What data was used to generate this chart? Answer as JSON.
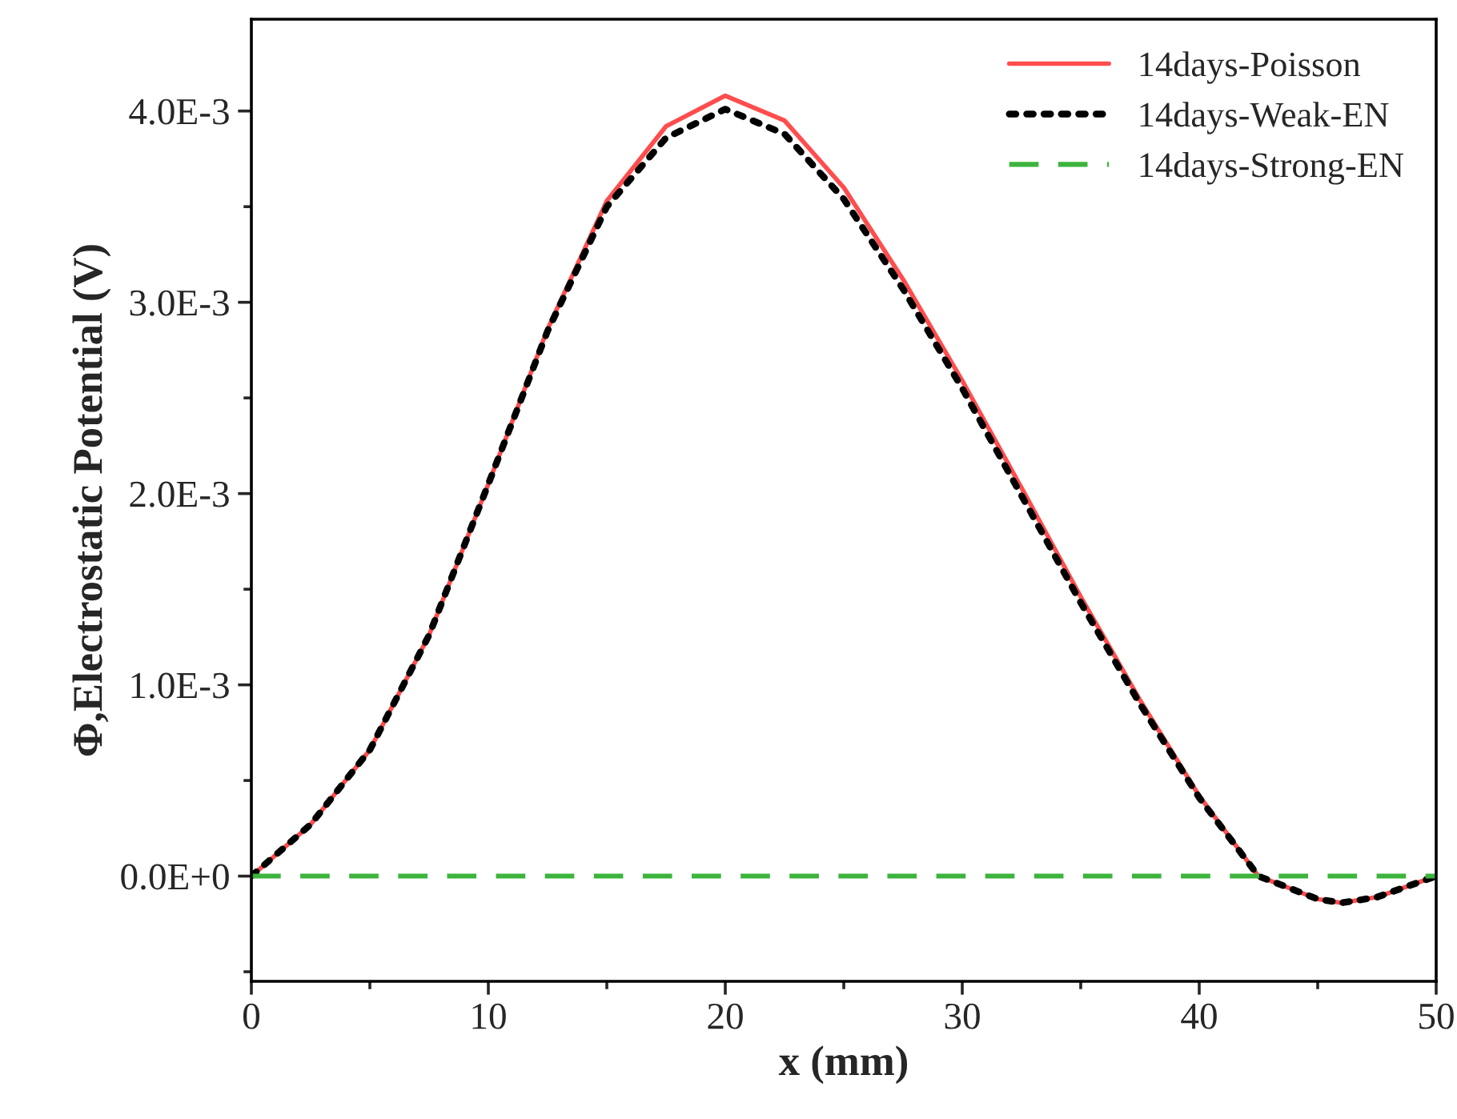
{
  "chart_data": {
    "type": "line",
    "xlabel": "x (mm)",
    "ylabel": "Φ,Electrostatic Potential (V)",
    "x": [
      0,
      2.5,
      5,
      7.5,
      10,
      12.5,
      15,
      17.5,
      20,
      22.5,
      25,
      27.5,
      30,
      32.5,
      35,
      37.5,
      40,
      42.5,
      45,
      46,
      47.5,
      50
    ],
    "series": [
      {
        "name": "14days-Poisson",
        "color": "#ff4d4d",
        "line_style": "solid",
        "values": [
          0,
          0.00027,
          0.00066,
          0.00126,
          0.00205,
          0.00286,
          0.00353,
          0.00392,
          0.00408,
          0.00395,
          0.0036,
          0.00312,
          0.00259,
          0.00203,
          0.00146,
          0.00092,
          0.00042,
          0,
          -0.00012,
          -0.00014,
          -0.00011,
          0
        ]
      },
      {
        "name": "14days-Weak-EN",
        "color": "#000000",
        "line_style": "dotted",
        "values": [
          0,
          0.00027,
          0.00066,
          0.00126,
          0.00205,
          0.00285,
          0.0035,
          0.00386,
          0.00401,
          0.00388,
          0.00354,
          0.00307,
          0.00255,
          0.00199,
          0.00143,
          0.0009,
          0.00041,
          0,
          -0.00012,
          -0.00014,
          -0.00011,
          0
        ]
      },
      {
        "name": "14days-Strong-EN",
        "color": "#3cb43c",
        "line_style": "dashed",
        "x": [
          0,
          50
        ],
        "values": [
          0,
          0
        ]
      }
    ],
    "xlim": [
      0,
      50
    ],
    "ylim": [
      -0.00055,
      0.00448
    ],
    "xticks": [
      0,
      {
        "value": 5,
        "label": null
      },
      10,
      {
        "value": 15,
        "label": null
      },
      20,
      {
        "value": 25,
        "label": null
      },
      30,
      {
        "value": 35,
        "label": null
      },
      40,
      {
        "value": 45,
        "label": null
      },
      50
    ],
    "yticks": [
      {
        "value": -0.0005,
        "label": null
      },
      {
        "value": 0,
        "label": "0.0E+0"
      },
      {
        "value": 0.0005,
        "label": null
      },
      {
        "value": 0.001,
        "label": "1.0E-3"
      },
      {
        "value": 0.0015,
        "label": null
      },
      {
        "value": 0.002,
        "label": "2.0E-3"
      },
      {
        "value": 0.0025,
        "label": null
      },
      {
        "value": 0.003,
        "label": "3.0E-3"
      },
      {
        "value": 0.0035,
        "label": null
      },
      {
        "value": 0.004,
        "label": "4.0E-3"
      }
    ],
    "grid": false,
    "legend": "top right",
    "marker": "none"
  }
}
